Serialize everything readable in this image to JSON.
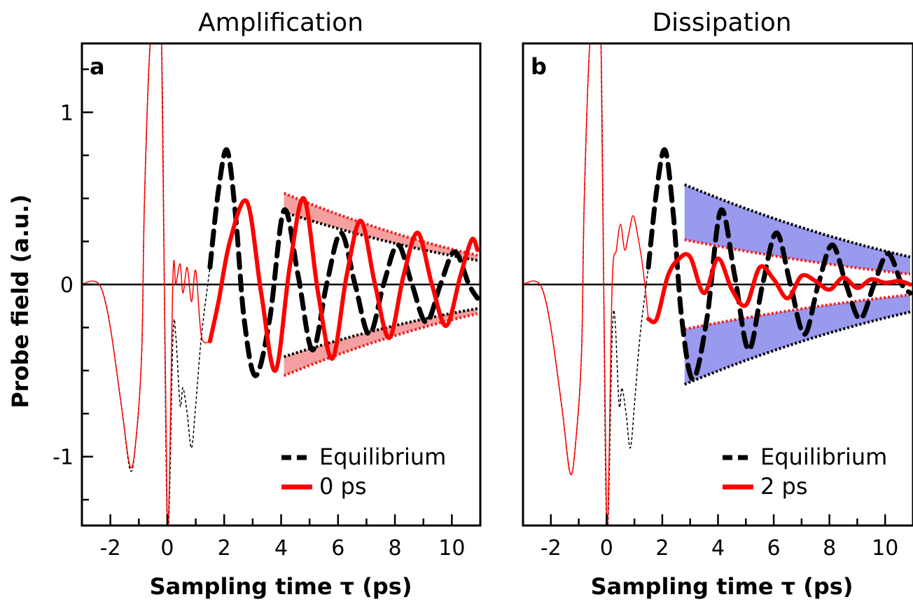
{
  "figure": {
    "ylabel": "Probe field (a.u.)",
    "colors": {
      "equilibrium": "#000000",
      "pumped": "#ff0000",
      "band_a": "#f4a0a0",
      "band_b": "#9999ee",
      "band_edge": "#ee2222"
    }
  },
  "chart_data": [
    {
      "type": "line",
      "panel": "a",
      "title": "Amplification",
      "xlabel": "Sampling time τ (ps)",
      "ylabel": "Probe field (a.u.)",
      "xlim": [
        -3,
        11
      ],
      "ylim": [
        -1.4,
        1.4
      ],
      "xticks": [
        "-2",
        "0",
        "2",
        "4",
        "6",
        "8",
        "10"
      ],
      "yticks": [
        "-1",
        "0",
        "1"
      ],
      "legend": {
        "position": "bottom-right",
        "entries": [
          "Equilibrium",
          "0 ps"
        ]
      },
      "series": [
        {
          "name": "Equilibrium",
          "style": "black-dashed",
          "x": [
            -3,
            -2.6,
            -2.3,
            -2.0,
            -1.6,
            -1.3,
            -1.1,
            -0.9,
            -0.8,
            -0.6,
            -0.4,
            -0.2,
            0.0,
            0.2,
            0.3,
            0.45,
            0.55,
            0.7,
            0.85,
            1.0,
            1.2,
            1.5,
            1.8,
            2.1,
            2.4,
            2.7,
            3.1,
            3.6,
            4.1,
            4.6,
            5.1,
            5.6,
            6.1,
            6.6,
            7.1,
            7.6,
            8.1,
            8.6,
            9.1,
            9.6,
            10.1,
            10.6,
            10.9
          ],
          "y": [
            0,
            0,
            -0.03,
            -0.25,
            -0.72,
            -1.08,
            -0.9,
            -0.4,
            0.5,
            1.4,
            1.4,
            1.4,
            -1.4,
            -0.3,
            -0.3,
            -0.7,
            -0.6,
            -0.75,
            -0.95,
            -0.7,
            -0.3,
            0.1,
            0.55,
            0.78,
            0.4,
            -0.2,
            -0.53,
            -0.2,
            0.43,
            0.05,
            -0.38,
            0.0,
            0.3,
            0.0,
            -0.29,
            0.0,
            0.23,
            0.0,
            -0.22,
            0.0,
            0.19,
            0.0,
            -0.08
          ]
        },
        {
          "name": "0 ps",
          "style": "red-solid",
          "x": [
            -3,
            -2.6,
            -2.3,
            -2.0,
            -1.6,
            -1.3,
            -1.1,
            -0.9,
            -0.8,
            -0.6,
            -0.4,
            -0.2,
            0.0,
            0.2,
            0.3,
            0.45,
            0.55,
            0.7,
            0.85,
            1.0,
            1.2,
            1.5,
            1.8,
            2.2,
            2.8,
            3.3,
            3.8,
            4.3,
            4.8,
            5.3,
            5.8,
            6.3,
            6.8,
            7.3,
            7.8,
            8.3,
            8.8,
            9.3,
            9.8,
            10.3,
            10.7,
            10.9
          ],
          "y": [
            0,
            0.02,
            -0.03,
            -0.25,
            -0.72,
            -1.06,
            -0.9,
            -0.4,
            0.5,
            1.4,
            1.4,
            1.4,
            -1.4,
            0.05,
            0.0,
            0.12,
            -0.05,
            0.1,
            -0.1,
            0.08,
            -0.3,
            -0.33,
            -0.1,
            0.25,
            0.48,
            -0.05,
            -0.5,
            0.1,
            0.5,
            -0.05,
            -0.43,
            0.05,
            0.37,
            0.0,
            -0.31,
            0.05,
            0.3,
            0.0,
            -0.24,
            0.05,
            0.26,
            0.2
          ]
        }
      ],
      "bands": [
        {
          "x": [
            4.1,
            10.9
          ],
          "upper_outer": [
            0.53,
            0.17
          ],
          "upper_inner": [
            0.42,
            0.14
          ],
          "lower_outer": [
            -0.53,
            -0.17
          ],
          "lower_inner": [
            -0.42,
            -0.14
          ]
        }
      ]
    },
    {
      "type": "line",
      "panel": "b",
      "title": "Dissipation",
      "xlabel": "Sampling time τ (ps)",
      "ylabel": "",
      "xlim": [
        -3,
        11
      ],
      "ylim": [
        -1.4,
        1.4
      ],
      "xticks": [
        "-2",
        "0",
        "2",
        "4",
        "6",
        "8",
        "10"
      ],
      "yticks": [],
      "legend": {
        "position": "bottom-right",
        "entries": [
          "Equilibrium",
          "2 ps"
        ]
      },
      "series": [
        {
          "name": "Equilibrium",
          "style": "black-dashed",
          "x": [
            -3,
            -2.6,
            -2.3,
            -2.0,
            -1.6,
            -1.3,
            -1.1,
            -0.9,
            -0.8,
            -0.6,
            -0.4,
            -0.2,
            0.0,
            0.2,
            0.3,
            0.45,
            0.55,
            0.7,
            0.85,
            1.0,
            1.2,
            1.5,
            1.8,
            2.1,
            2.4,
            2.7,
            3.1,
            3.6,
            4.1,
            4.6,
            5.1,
            5.6,
            6.1,
            6.6,
            7.1,
            7.6,
            8.1,
            8.6,
            9.1,
            9.6,
            10.1,
            10.6,
            10.9
          ],
          "y": [
            0,
            0,
            -0.03,
            -0.25,
            -0.72,
            -1.1,
            -0.9,
            -0.4,
            0.5,
            1.4,
            1.4,
            1.4,
            -1.4,
            -0.3,
            -0.2,
            -0.7,
            -0.6,
            -0.75,
            -0.95,
            -0.7,
            -0.3,
            0.1,
            0.55,
            0.78,
            0.4,
            -0.2,
            -0.55,
            -0.2,
            0.43,
            0.05,
            -0.38,
            0.0,
            0.3,
            0.0,
            -0.29,
            0.0,
            0.23,
            0.0,
            -0.2,
            0.0,
            0.18,
            0.0,
            -0.05
          ]
        },
        {
          "name": "2 ps",
          "style": "red-solid",
          "x": [
            -3,
            -2.6,
            -2.3,
            -2.0,
            -1.6,
            -1.3,
            -1.1,
            -0.9,
            -0.8,
            -0.6,
            -0.4,
            -0.2,
            0.0,
            0.2,
            0.35,
            0.5,
            0.65,
            0.8,
            0.95,
            1.1,
            1.3,
            1.5,
            1.8,
            2.2,
            2.6,
            3.0,
            3.5,
            4.0,
            4.5,
            5.0,
            5.5,
            6.0,
            6.5,
            7.0,
            7.5,
            8.0,
            8.5,
            9.0,
            9.5,
            10.0,
            10.5,
            10.9
          ],
          "y": [
            0,
            0.02,
            -0.03,
            -0.25,
            -0.72,
            -1.1,
            -0.9,
            -0.4,
            0.5,
            1.4,
            1.4,
            1.4,
            -1.4,
            0.0,
            0.2,
            0.35,
            0.2,
            0.3,
            0.4,
            0.3,
            0.1,
            -0.2,
            -0.2,
            0.05,
            0.15,
            0.16,
            -0.05,
            0.15,
            -0.03,
            -0.12,
            0.1,
            0.03,
            -0.08,
            0.05,
            0.02,
            -0.03,
            0.04,
            -0.02,
            0.03,
            0.01,
            0.02,
            0.0
          ]
        }
      ],
      "bands": [
        {
          "x": [
            2.8,
            10.9
          ],
          "upper_outer": [
            0.58,
            0.16
          ],
          "upper_inner": [
            0.26,
            0.06
          ],
          "lower_outer": [
            -0.58,
            -0.16
          ],
          "lower_inner": [
            -0.26,
            -0.06
          ]
        }
      ]
    }
  ]
}
